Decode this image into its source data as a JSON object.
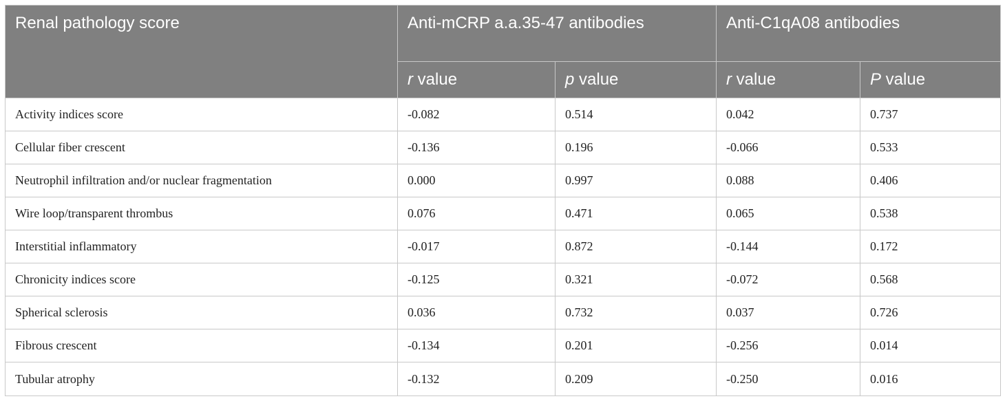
{
  "table": {
    "headers": {
      "score": "Renal pathology score",
      "group1": "Anti-mCRP a.a.35-47 antibodies",
      "group2": "Anti-C1qA08 antibodies",
      "g1_r_symbol": "r",
      "g1_r_text": " value",
      "g1_p_symbol": "p",
      "g1_p_text": " value",
      "g2_r_symbol": "r",
      "g2_r_text": " value",
      "g2_p_symbol": "P",
      "g2_p_text": " value"
    },
    "rows": [
      {
        "label": "Activity indices score",
        "mcrp_r": "-0.082",
        "mcrp_p": "0.514",
        "c1q_r": "0.042",
        "c1q_p": "0.737"
      },
      {
        "label": "Cellular fiber crescent",
        "mcrp_r": "-0.136",
        "mcrp_p": "0.196",
        "c1q_r": "-0.066",
        "c1q_p": "0.533"
      },
      {
        "label": "Neutrophil infiltration and/or nuclear fragmentation",
        "mcrp_r": "0.000",
        "mcrp_p": "0.997",
        "c1q_r": "0.088",
        "c1q_p": "0.406"
      },
      {
        "label": "Wire loop/transparent thrombus",
        "mcrp_r": "0.076",
        "mcrp_p": "0.471",
        "c1q_r": "0.065",
        "c1q_p": "0.538"
      },
      {
        "label": "Interstitial inflammatory",
        "mcrp_r": "-0.017",
        "mcrp_p": "0.872",
        "c1q_r": "-0.144",
        "c1q_p": "0.172"
      },
      {
        "label": "Chronicity indices score",
        "mcrp_r": "-0.125",
        "mcrp_p": "0.321",
        "c1q_r": "-0.072",
        "c1q_p": "0.568"
      },
      {
        "label": "Spherical sclerosis",
        "mcrp_r": "0.036",
        "mcrp_p": "0.732",
        "c1q_r": "0.037",
        "c1q_p": "0.726"
      },
      {
        "label": "Fibrous crescent",
        "mcrp_r": "-0.134",
        "mcrp_p": "0.201",
        "c1q_r": "-0.256",
        "c1q_p": "0.014"
      },
      {
        "label": "Tubular atrophy",
        "mcrp_r": "-0.132",
        "mcrp_p": "0.209",
        "c1q_r": "-0.250",
        "c1q_p": "0.016"
      }
    ]
  }
}
